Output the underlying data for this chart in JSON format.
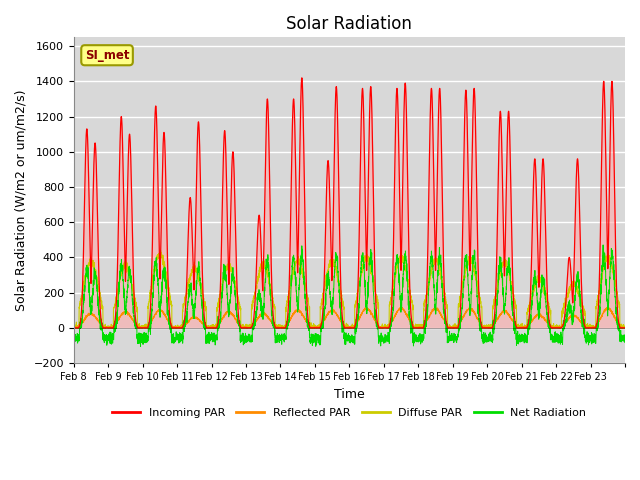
{
  "title": "Solar Radiation",
  "ylabel": "Solar Radiation (W/m2 or um/m2/s)",
  "xlabel": "Time",
  "ylim": [
    -200,
    1650
  ],
  "yticks": [
    -200,
    0,
    200,
    400,
    600,
    800,
    1000,
    1200,
    1400,
    1600
  ],
  "date_labels": [
    "Feb 8",
    "Feb 9",
    "Feb 10",
    "Feb 11",
    "Feb 12",
    "Feb 13",
    "Feb 14",
    "Feb 15",
    "Feb 16",
    "Feb 17",
    "Feb 18",
    "Feb 19",
    "Feb 20",
    "Feb 21",
    "Feb 22",
    "Feb 23"
  ],
  "station_label": "SI_met",
  "legend": [
    "Incoming PAR",
    "Reflected PAR",
    "Diffuse PAR",
    "Net Radiation"
  ],
  "colors": {
    "incoming": "#FF0000",
    "reflected": "#FF8C00",
    "diffuse": "#CCCC00",
    "net": "#00DD00"
  },
  "fill_incoming": "#FFAAAA",
  "background_color": "#D8D8D8",
  "grid_color": "#FFFFFF",
  "n_days": 16,
  "pts_per_day": 288,
  "day_peaks_am": [
    1130,
    1200,
    1260,
    740,
    1120,
    640,
    1300,
    950,
    1360,
    1360,
    1360,
    1350,
    1230,
    960,
    400,
    1400
  ],
  "day_peaks_pm": [
    1050,
    1100,
    1110,
    1170,
    1000,
    1300,
    1420,
    1370,
    1370,
    1390,
    1360,
    1360,
    1230,
    960,
    960,
    1400
  ],
  "day_peaks_diffuse": [
    380,
    350,
    420,
    340,
    355,
    360,
    380,
    380,
    400,
    400,
    385,
    390,
    370,
    280,
    250,
    400
  ],
  "day_peaks_reflected": [
    80,
    90,
    100,
    60,
    90,
    80,
    100,
    100,
    110,
    110,
    110,
    110,
    95,
    75,
    70,
    110
  ],
  "night_net": -60,
  "title_fontsize": 12,
  "label_fontsize": 9,
  "tick_fontsize": 8
}
